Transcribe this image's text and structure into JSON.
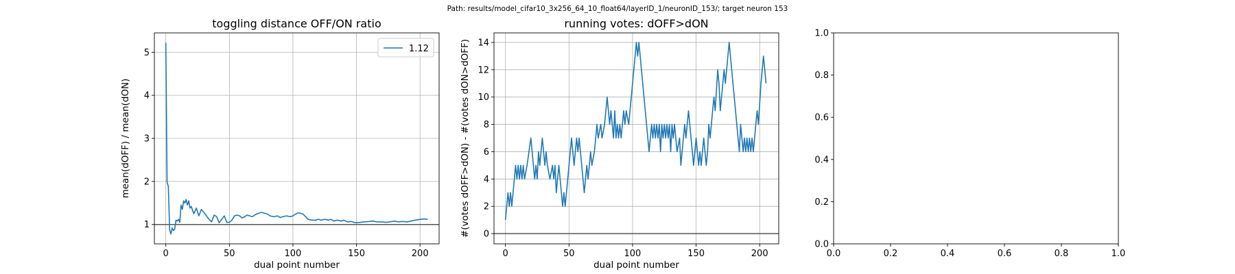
{
  "figure": {
    "suptitle": "Path: results/model_cifar10_3x256_64_10_float64/layerID_1/neuronID_153/; target neuron 153"
  },
  "chart_data": [
    {
      "type": "line",
      "title": "toggling distance OFF/ON ratio",
      "xlabel": "dual point number",
      "ylabel": "mean(dOFF) / mean(dON)",
      "xlim": [
        -9,
        215
      ],
      "ylim": [
        0.55,
        5.45
      ],
      "xticks": [
        0,
        50,
        100,
        150,
        200
      ],
      "yticks": [
        1,
        2,
        3,
        4,
        5
      ],
      "grid": true,
      "legend": {
        "position": "top-right",
        "entries": [
          "1.12"
        ]
      },
      "reference_line": {
        "y": 1,
        "color": "#555555"
      },
      "series": [
        {
          "name": "1.12",
          "color": "#1f77b4",
          "points": [
            [
              0,
              5.22
            ],
            [
              1,
              1.98
            ],
            [
              2,
              1.88
            ],
            [
              3,
              0.88
            ],
            [
              4,
              0.78
            ],
            [
              5,
              0.92
            ],
            [
              6,
              0.86
            ],
            [
              7,
              0.9
            ],
            [
              8,
              1.1
            ],
            [
              9,
              1.08
            ],
            [
              10,
              1.12
            ],
            [
              11,
              1.05
            ],
            [
              12,
              1.45
            ],
            [
              13,
              1.35
            ],
            [
              14,
              1.55
            ],
            [
              15,
              1.5
            ],
            [
              16,
              1.58
            ],
            [
              17,
              1.45
            ],
            [
              18,
              1.55
            ],
            [
              19,
              1.38
            ],
            [
              20,
              1.42
            ],
            [
              22,
              1.25
            ],
            [
              24,
              1.38
            ],
            [
              26,
              1.2
            ],
            [
              28,
              1.35
            ],
            [
              30,
              1.28
            ],
            [
              32,
              1.2
            ],
            [
              34,
              1.12
            ],
            [
              36,
              1.06
            ],
            [
              38,
              1.22
            ],
            [
              40,
              1.18
            ],
            [
              42,
              1.04
            ],
            [
              44,
              1.12
            ],
            [
              46,
              1.2
            ],
            [
              48,
              1.05
            ],
            [
              50,
              1.05
            ],
            [
              52,
              1.1
            ],
            [
              54,
              1.2
            ],
            [
              56,
              1.22
            ],
            [
              58,
              1.2
            ],
            [
              60,
              1.15
            ],
            [
              62,
              1.18
            ],
            [
              64,
              1.22
            ],
            [
              66,
              1.2
            ],
            [
              68,
              1.18
            ],
            [
              70,
              1.22
            ],
            [
              72,
              1.25
            ],
            [
              75,
              1.28
            ],
            [
              78,
              1.26
            ],
            [
              80,
              1.24
            ],
            [
              82,
              1.2
            ],
            [
              85,
              1.18
            ],
            [
              88,
              1.2
            ],
            [
              90,
              1.16
            ],
            [
              92,
              1.18
            ],
            [
              95,
              1.2
            ],
            [
              98,
              1.18
            ],
            [
              100,
              1.2
            ],
            [
              102,
              1.24
            ],
            [
              104,
              1.27
            ],
            [
              106,
              1.26
            ],
            [
              108,
              1.24
            ],
            [
              110,
              1.18
            ],
            [
              112,
              1.12
            ],
            [
              115,
              1.1
            ],
            [
              118,
              1.1
            ],
            [
              120,
              1.12
            ],
            [
              122,
              1.1
            ],
            [
              125,
              1.12
            ],
            [
              128,
              1.1
            ],
            [
              130,
              1.12
            ],
            [
              132,
              1.08
            ],
            [
              135,
              1.1
            ],
            [
              138,
              1.08
            ],
            [
              140,
              1.1
            ],
            [
              143,
              1.06
            ],
            [
              146,
              1.07
            ],
            [
              148,
              1.05
            ],
            [
              150,
              1.04
            ],
            [
              153,
              1.05
            ],
            [
              156,
              1.06
            ],
            [
              160,
              1.07
            ],
            [
              163,
              1.08
            ],
            [
              166,
              1.06
            ],
            [
              170,
              1.06
            ],
            [
              173,
              1.05
            ],
            [
              176,
              1.06
            ],
            [
              180,
              1.08
            ],
            [
              183,
              1.06
            ],
            [
              186,
              1.07
            ],
            [
              190,
              1.06
            ],
            [
              193,
              1.08
            ],
            [
              196,
              1.1
            ],
            [
              200,
              1.12
            ],
            [
              203,
              1.13
            ],
            [
              206,
              1.12
            ]
          ]
        }
      ]
    },
    {
      "type": "line",
      "title": "running votes: dOFF>dON",
      "xlabel": "dual point number",
      "ylabel": "#(votes dOFF>dON) - #(votes dON>dOFF)",
      "xlim": [
        -9,
        215
      ],
      "ylim": [
        -0.75,
        14.7
      ],
      "xticks": [
        0,
        50,
        100,
        150,
        200
      ],
      "yticks": [
        0,
        2,
        4,
        6,
        8,
        10,
        12,
        14
      ],
      "grid": true,
      "reference_line": {
        "y": 0,
        "color": "#555555"
      },
      "series": [
        {
          "color": "#1f77b4",
          "points": [
            [
              0,
              1
            ],
            [
              2,
              3
            ],
            [
              3,
              2
            ],
            [
              4,
              3
            ],
            [
              5,
              2
            ],
            [
              7,
              4
            ],
            [
              8,
              5
            ],
            [
              9,
              4
            ],
            [
              10,
              5
            ],
            [
              11,
              4
            ],
            [
              12,
              5
            ],
            [
              13,
              4
            ],
            [
              14,
              5
            ],
            [
              15,
              4
            ],
            [
              17,
              5
            ],
            [
              20,
              7
            ],
            [
              21,
              6
            ],
            [
              23,
              4
            ],
            [
              24,
              5
            ],
            [
              25,
              4
            ],
            [
              26,
              6
            ],
            [
              27,
              5
            ],
            [
              29,
              7
            ],
            [
              31,
              5
            ],
            [
              32,
              6
            ],
            [
              33,
              5
            ],
            [
              35,
              4
            ],
            [
              37,
              5
            ],
            [
              38,
              4
            ],
            [
              39,
              5
            ],
            [
              40,
              3
            ],
            [
              42,
              5
            ],
            [
              43,
              4
            ],
            [
              45,
              2
            ],
            [
              46,
              3
            ],
            [
              47,
              2
            ],
            [
              48,
              3
            ],
            [
              50,
              5
            ],
            [
              52,
              7
            ],
            [
              54,
              5
            ],
            [
              56,
              7
            ],
            [
              57,
              6
            ],
            [
              58,
              7
            ],
            [
              59,
              6
            ],
            [
              62,
              3
            ],
            [
              64,
              5
            ],
            [
              65,
              4
            ],
            [
              67,
              6
            ],
            [
              68,
              5
            ],
            [
              70,
              6
            ],
            [
              72,
              8
            ],
            [
              73,
              7
            ],
            [
              75,
              8
            ],
            [
              76,
              7
            ],
            [
              78,
              8
            ],
            [
              80,
              10
            ],
            [
              81,
              9
            ],
            [
              82,
              8
            ],
            [
              83,
              9
            ],
            [
              84,
              8
            ],
            [
              85,
              7
            ],
            [
              86,
              9
            ],
            [
              87,
              7
            ],
            [
              88,
              8
            ],
            [
              89,
              7
            ],
            [
              90,
              8
            ],
            [
              91,
              7
            ],
            [
              93,
              9
            ],
            [
              94,
              8
            ],
            [
              95,
              9
            ],
            [
              97,
              8
            ],
            [
              99,
              10
            ],
            [
              101,
              12
            ],
            [
              103,
              14
            ],
            [
              104,
              13
            ],
            [
              105,
              14
            ],
            [
              107,
              12
            ],
            [
              109,
              10
            ],
            [
              111,
              8
            ],
            [
              113,
              6
            ],
            [
              115,
              8
            ],
            [
              116,
              7
            ],
            [
              117,
              8
            ],
            [
              118,
              7
            ],
            [
              119,
              8
            ],
            [
              120,
              7
            ],
            [
              121,
              8
            ],
            [
              122,
              6
            ],
            [
              123,
              8
            ],
            [
              124,
              7
            ],
            [
              125,
              8
            ],
            [
              126,
              7
            ],
            [
              127,
              8
            ],
            [
              128,
              7
            ],
            [
              129,
              8
            ],
            [
              130,
              6
            ],
            [
              131,
              8
            ],
            [
              132,
              7
            ],
            [
              133,
              8
            ],
            [
              135,
              6
            ],
            [
              137,
              7
            ],
            [
              138,
              5
            ],
            [
              139,
              6
            ],
            [
              141,
              8
            ],
            [
              142,
              7
            ],
            [
              144,
              9
            ],
            [
              146,
              7
            ],
            [
              148,
              5
            ],
            [
              149,
              6
            ],
            [
              150,
              7
            ],
            [
              151,
              6
            ],
            [
              152,
              5
            ],
            [
              153,
              6
            ],
            [
              154,
              5
            ],
            [
              155,
              6
            ],
            [
              156,
              7
            ],
            [
              157,
              6
            ],
            [
              158,
              5
            ],
            [
              159,
              6
            ],
            [
              160,
              8
            ],
            [
              161,
              7
            ],
            [
              163,
              9
            ],
            [
              164,
              10
            ],
            [
              165,
              9
            ],
            [
              167,
              12
            ],
            [
              168,
              11
            ],
            [
              169,
              9
            ],
            [
              170,
              10
            ],
            [
              171,
              11
            ],
            [
              172,
              12
            ],
            [
              173,
              11
            ],
            [
              174,
              12
            ],
            [
              175,
              13
            ],
            [
              176,
              14
            ],
            [
              178,
              12
            ],
            [
              180,
              10
            ],
            [
              182,
              8
            ],
            [
              183,
              7
            ],
            [
              184,
              6
            ],
            [
              185,
              8
            ],
            [
              186,
              7
            ],
            [
              187,
              6
            ],
            [
              188,
              7
            ],
            [
              189,
              6
            ],
            [
              190,
              7
            ],
            [
              191,
              6
            ],
            [
              192,
              7
            ],
            [
              193,
              6
            ],
            [
              194,
              7
            ],
            [
              195,
              6
            ],
            [
              196,
              7
            ],
            [
              198,
              9
            ],
            [
              199,
              8
            ],
            [
              201,
              11
            ],
            [
              202,
              12
            ],
            [
              203,
              13
            ],
            [
              204,
              12
            ],
            [
              205,
              11
            ]
          ]
        }
      ]
    },
    {
      "type": "line",
      "title": "",
      "xlabel": "",
      "ylabel": "",
      "xlim": [
        0,
        1
      ],
      "ylim": [
        0,
        1
      ],
      "xticks": [
        "0.0",
        "0.2",
        "0.4",
        "0.6",
        "0.8",
        "1.0"
      ],
      "yticks": [
        "0.0",
        "0.2",
        "0.4",
        "0.6",
        "0.8",
        "1.0"
      ],
      "grid": false,
      "series": []
    }
  ]
}
